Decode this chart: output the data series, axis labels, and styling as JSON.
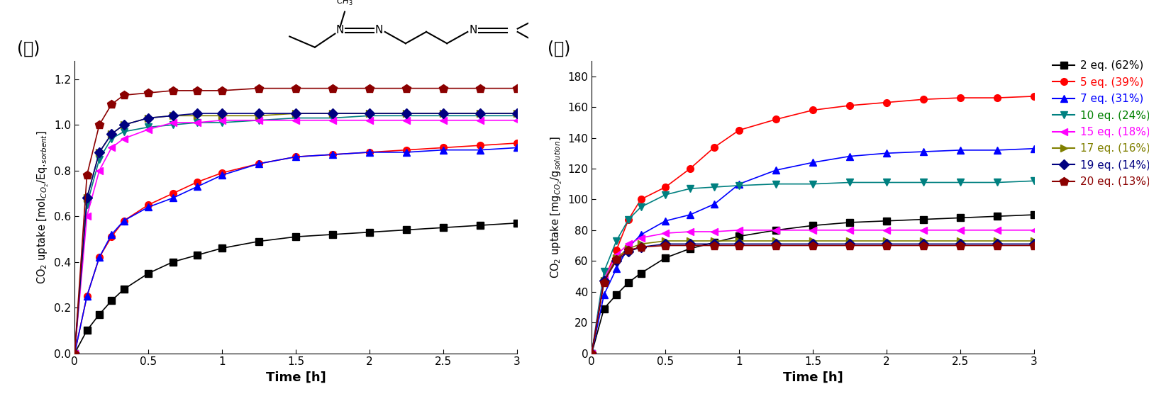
{
  "series": [
    {
      "label": "2 eq. (62%)",
      "lcolor": "#000000",
      "tcolor": "#000000",
      "marker": "s",
      "mfc": "#000000",
      "time": [
        0,
        0.083,
        0.167,
        0.25,
        0.333,
        0.5,
        0.667,
        0.833,
        1.0,
        1.25,
        1.5,
        1.75,
        2.0,
        2.25,
        2.5,
        2.75,
        3.0
      ],
      "y_left": [
        0,
        0.1,
        0.17,
        0.23,
        0.28,
        0.35,
        0.4,
        0.43,
        0.46,
        0.49,
        0.51,
        0.52,
        0.53,
        0.54,
        0.55,
        0.56,
        0.57
      ],
      "y_right": [
        0,
        29,
        38,
        46,
        52,
        62,
        68,
        72,
        76,
        80,
        83,
        85,
        86,
        87,
        88,
        89,
        90
      ]
    },
    {
      "label": "5 eq. (39%)",
      "lcolor": "#ff0000",
      "tcolor": "#ff0000",
      "marker": "o",
      "mfc": "#ff0000",
      "time": [
        0,
        0.083,
        0.167,
        0.25,
        0.333,
        0.5,
        0.667,
        0.833,
        1.0,
        1.25,
        1.5,
        1.75,
        2.0,
        2.25,
        2.5,
        2.75,
        3.0
      ],
      "y_left": [
        0,
        0.25,
        0.42,
        0.51,
        0.58,
        0.65,
        0.7,
        0.75,
        0.79,
        0.83,
        0.86,
        0.87,
        0.88,
        0.89,
        0.9,
        0.91,
        0.92
      ],
      "y_right": [
        0,
        47,
        67,
        87,
        100,
        108,
        120,
        134,
        145,
        152,
        158,
        161,
        163,
        165,
        166,
        166,
        167
      ]
    },
    {
      "label": "7 eq. (31%)",
      "lcolor": "#0000ff",
      "tcolor": "#0000ff",
      "marker": "^",
      "mfc": "#0000ff",
      "time": [
        0,
        0.083,
        0.167,
        0.25,
        0.333,
        0.5,
        0.667,
        0.833,
        1.0,
        1.25,
        1.5,
        1.75,
        2.0,
        2.25,
        2.5,
        2.75,
        3.0
      ],
      "y_left": [
        0,
        0.25,
        0.42,
        0.52,
        0.58,
        0.64,
        0.68,
        0.73,
        0.78,
        0.83,
        0.86,
        0.87,
        0.88,
        0.88,
        0.89,
        0.89,
        0.9
      ],
      "y_right": [
        0,
        38,
        55,
        69,
        77,
        86,
        90,
        97,
        110,
        119,
        124,
        128,
        130,
        131,
        132,
        132,
        133
      ]
    },
    {
      "label": "10 eq. (24%)",
      "lcolor": "#008080",
      "tcolor": "#008000",
      "marker": "v",
      "mfc": "#008080",
      "time": [
        0,
        0.083,
        0.167,
        0.25,
        0.333,
        0.5,
        0.667,
        0.833,
        1.0,
        1.25,
        1.5,
        1.75,
        2.0,
        2.25,
        2.5,
        2.75,
        3.0
      ],
      "y_left": [
        0,
        0.65,
        0.85,
        0.94,
        0.97,
        0.99,
        1.0,
        1.01,
        1.01,
        1.02,
        1.03,
        1.03,
        1.04,
        1.04,
        1.04,
        1.04,
        1.04
      ],
      "y_right": [
        0,
        53,
        73,
        87,
        95,
        103,
        107,
        108,
        109,
        110,
        110,
        111,
        111,
        111,
        111,
        111,
        112
      ]
    },
    {
      "label": "15 eq. (18%)",
      "lcolor": "#ff00ff",
      "tcolor": "#ff00ff",
      "marker": "<",
      "mfc": "#ff00ff",
      "time": [
        0,
        0.083,
        0.167,
        0.25,
        0.333,
        0.5,
        0.667,
        0.833,
        1.0,
        1.25,
        1.5,
        1.75,
        2.0,
        2.25,
        2.5,
        2.75,
        3.0
      ],
      "y_left": [
        0,
        0.6,
        0.8,
        0.9,
        0.94,
        0.98,
        1.01,
        1.01,
        1.02,
        1.02,
        1.02,
        1.02,
        1.02,
        1.02,
        1.02,
        1.02,
        1.02
      ],
      "y_right": [
        0,
        48,
        64,
        71,
        75,
        78,
        79,
        79,
        80,
        80,
        80,
        80,
        80,
        80,
        80,
        80,
        80
      ]
    },
    {
      "label": "17 eq. (16%)",
      "lcolor": "#808000",
      "tcolor": "#808000",
      "marker": ">",
      "mfc": "#808000",
      "time": [
        0,
        0.083,
        0.167,
        0.25,
        0.333,
        0.5,
        0.667,
        0.833,
        1.0,
        1.25,
        1.5,
        1.75,
        2.0,
        2.25,
        2.5,
        2.75,
        3.0
      ],
      "y_left": [
        0,
        0.68,
        0.88,
        0.96,
        1.0,
        1.03,
        1.04,
        1.04,
        1.04,
        1.04,
        1.05,
        1.05,
        1.05,
        1.05,
        1.05,
        1.05,
        1.05
      ],
      "y_right": [
        0,
        47,
        62,
        68,
        71,
        73,
        73,
        73,
        73,
        73,
        73,
        73,
        73,
        73,
        73,
        73,
        73
      ]
    },
    {
      "label": "19 eq. (14%)",
      "lcolor": "#000080",
      "tcolor": "#000080",
      "marker": "D",
      "mfc": "#000080",
      "time": [
        0,
        0.083,
        0.167,
        0.25,
        0.333,
        0.5,
        0.667,
        0.833,
        1.0,
        1.25,
        1.5,
        1.75,
        2.0,
        2.25,
        2.5,
        2.75,
        3.0
      ],
      "y_left": [
        0,
        0.68,
        0.88,
        0.96,
        1.0,
        1.03,
        1.04,
        1.05,
        1.05,
        1.05,
        1.05,
        1.05,
        1.05,
        1.05,
        1.05,
        1.05,
        1.05
      ],
      "y_right": [
        0,
        47,
        60,
        66,
        69,
        71,
        71,
        71,
        71,
        71,
        71,
        71,
        71,
        71,
        71,
        71,
        71
      ]
    },
    {
      "label": "20 eq. (13%)",
      "lcolor": "#8B0000",
      "tcolor": "#8B0000",
      "marker": "p",
      "mfc": "#8B0000",
      "time": [
        0,
        0.083,
        0.167,
        0.25,
        0.333,
        0.5,
        0.667,
        0.833,
        1.0,
        1.25,
        1.5,
        1.75,
        2.0,
        2.25,
        2.5,
        2.75,
        3.0
      ],
      "y_left": [
        0,
        0.78,
        1.0,
        1.09,
        1.13,
        1.14,
        1.15,
        1.15,
        1.15,
        1.16,
        1.16,
        1.16,
        1.16,
        1.16,
        1.16,
        1.16,
        1.16
      ],
      "y_right": [
        0,
        46,
        61,
        67,
        69,
        70,
        70,
        70,
        70,
        70,
        70,
        70,
        70,
        70,
        70,
        70,
        70
      ]
    }
  ],
  "left_ylabel": "CO$_2$ uptake [mol$_{CO_2}$/Eq.$_{sorbent}$]",
  "right_ylabel": "CO$_2$ uptake [mg$_{CO_2}$/g$_{solution}$]",
  "xlabel": "Time [h]",
  "left_label": "(가)",
  "right_label": "(나)",
  "left_ylim": [
    0.0,
    1.28
  ],
  "right_ylim": [
    0,
    190
  ],
  "left_yticks": [
    0.0,
    0.2,
    0.4,
    0.6,
    0.8,
    1.0,
    1.2
  ],
  "right_yticks": [
    0,
    20,
    40,
    60,
    80,
    100,
    120,
    140,
    160,
    180
  ],
  "xlim": [
    0,
    3
  ],
  "xticks": [
    0,
    0.5,
    1.0,
    1.5,
    2.0,
    2.5,
    3.0
  ],
  "xtick_labels": [
    "0",
    "0.5",
    "1",
    "1.5",
    "2",
    "2.5",
    "3"
  ]
}
